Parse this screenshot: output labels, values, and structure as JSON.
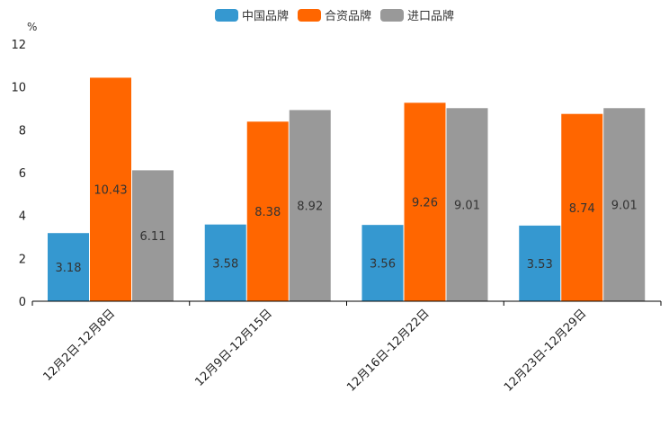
{
  "chart_data": {
    "type": "bar",
    "unit": "%",
    "categories": [
      "12月2日-12月8日",
      "12月9日-12月15日",
      "12月16日-12月22日",
      "12月23日-12月29日"
    ],
    "series": [
      {
        "name": "中国品牌",
        "color": "#3598d0",
        "values": [
          3.18,
          3.58,
          3.56,
          3.53
        ],
        "labels": [
          "3.18",
          "3.58",
          "3.56",
          "3.53"
        ]
      },
      {
        "name": "合资品牌",
        "color": "#ff6600",
        "values": [
          10.43,
          8.38,
          9.26,
          8.74
        ],
        "labels": [
          "10.43",
          "8.38",
          "9.26",
          "8.74"
        ]
      },
      {
        "name": "进口品牌",
        "color": "#999999",
        "values": [
          6.11,
          8.92,
          9.01,
          9.01
        ],
        "labels": [
          "6.11",
          "8.92",
          "9.01",
          "9.01"
        ]
      }
    ],
    "yticks": [
      "0",
      "2",
      "4",
      "6",
      "8",
      "10",
      "12"
    ],
    "ylim": [
      0,
      12
    ],
    "legend_position": "top-center",
    "grid": false
  }
}
